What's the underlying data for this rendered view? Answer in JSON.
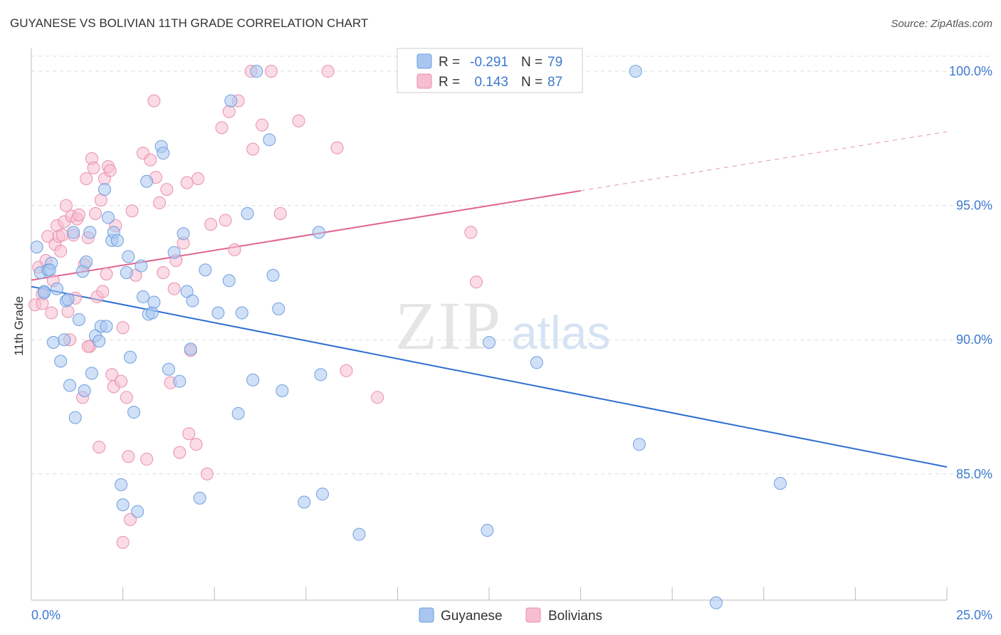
{
  "title": "GUYANESE VS BOLIVIAN 11TH GRADE CORRELATION CHART",
  "source": "Source: ZipAtlas.com",
  "watermark": {
    "zip": "ZIP",
    "atlas": "atlas"
  },
  "colors": {
    "guyanese_fill": "#a9c6f0",
    "guyanese_stroke": "#6f9fdf",
    "guyanese_line": "#2f6fcf",
    "bolivians_fill": "#f7bdd0",
    "bolivians_stroke": "#e890ad",
    "bolivians_line": "#e0648f",
    "grid": "#dddddd",
    "tick_text": "#3d7ad1"
  },
  "legend": {
    "rows": [
      {
        "r_label": "R =",
        "r_value": "-0.291",
        "n_label": "N =",
        "n_value": "79"
      },
      {
        "r_label": "R =",
        "r_value": "0.143",
        "n_label": "N =",
        "n_value": "87"
      }
    ]
  },
  "chart_data": {
    "type": "scatter",
    "title": "GUYANESE VS BOLIVIAN 11TH GRADE CORRELATION CHART",
    "xlabel": "",
    "ylabel": "11th Grade",
    "xlim": [
      0,
      25
    ],
    "ylim": [
      80.3,
      100.8
    ],
    "x_tick_labels": [
      "0.0%",
      "25.0%"
    ],
    "y_ticks": [
      85,
      90,
      95,
      100
    ],
    "y_tick_labels": [
      "85.0%",
      "90.0%",
      "95.0%",
      "100.0%"
    ],
    "grid": true,
    "legend_position": "top-center",
    "series": [
      {
        "name": "Guyanese",
        "r": -0.291,
        "n": 79,
        "trend": {
          "x0": 0,
          "y0": 91.98,
          "x1": 25,
          "y1": 85.26
        },
        "points": [
          [
            0.15,
            93.45
          ],
          [
            0.25,
            92.5
          ],
          [
            0.35,
            91.8
          ],
          [
            0.45,
            92.6
          ],
          [
            0.55,
            92.85
          ],
          [
            0.6,
            89.9
          ],
          [
            0.7,
            91.9
          ],
          [
            0.8,
            89.2
          ],
          [
            0.9,
            90.0
          ],
          [
            0.95,
            91.45
          ],
          [
            1.05,
            88.3
          ],
          [
            1.15,
            94.0
          ],
          [
            1.2,
            87.1
          ],
          [
            1.3,
            90.75
          ],
          [
            1.4,
            92.55
          ],
          [
            1.45,
            88.1
          ],
          [
            1.5,
            92.9
          ],
          [
            1.6,
            94.0
          ],
          [
            1.65,
            88.75
          ],
          [
            1.75,
            90.15
          ],
          [
            1.85,
            89.95
          ],
          [
            1.9,
            90.5
          ],
          [
            2.0,
            95.6
          ],
          [
            2.05,
            90.5
          ],
          [
            2.1,
            94.55
          ],
          [
            2.2,
            93.7
          ],
          [
            2.25,
            94.0
          ],
          [
            2.45,
            84.6
          ],
          [
            2.5,
            83.85
          ],
          [
            2.6,
            92.5
          ],
          [
            2.65,
            93.1
          ],
          [
            2.7,
            89.35
          ],
          [
            2.8,
            87.3
          ],
          [
            2.9,
            83.6
          ],
          [
            3.0,
            92.75
          ],
          [
            3.05,
            91.6
          ],
          [
            3.15,
            95.9
          ],
          [
            3.2,
            90.95
          ],
          [
            3.3,
            91.0
          ],
          [
            3.35,
            91.4
          ],
          [
            3.55,
            97.2
          ],
          [
            3.6,
            96.95
          ],
          [
            3.75,
            88.9
          ],
          [
            3.9,
            93.25
          ],
          [
            4.05,
            88.45
          ],
          [
            4.15,
            93.95
          ],
          [
            4.25,
            91.8
          ],
          [
            4.35,
            89.65
          ],
          [
            4.4,
            91.45
          ],
          [
            4.6,
            84.1
          ],
          [
            4.75,
            92.6
          ],
          [
            5.1,
            91.0
          ],
          [
            5.4,
            92.2
          ],
          [
            5.45,
            98.9
          ],
          [
            5.65,
            87.25
          ],
          [
            5.75,
            91.0
          ],
          [
            5.9,
            94.7
          ],
          [
            6.05,
            88.5
          ],
          [
            6.15,
            100.0
          ],
          [
            6.5,
            97.45
          ],
          [
            6.6,
            92.4
          ],
          [
            6.75,
            91.15
          ],
          [
            6.85,
            88.1
          ],
          [
            7.45,
            83.95
          ],
          [
            7.85,
            94.0
          ],
          [
            7.9,
            88.7
          ],
          [
            7.95,
            84.25
          ],
          [
            8.95,
            82.75
          ],
          [
            12.45,
            82.9
          ],
          [
            12.5,
            89.9
          ],
          [
            13.8,
            89.15
          ],
          [
            16.6,
            86.1
          ],
          [
            16.5,
            100.0
          ],
          [
            20.45,
            84.65
          ],
          [
            18.7,
            80.2
          ],
          [
            0.5,
            92.6
          ],
          [
            1.0,
            91.5
          ],
          [
            0.35,
            91.75
          ],
          [
            2.35,
            93.7
          ]
        ]
      },
      {
        "name": "Bolivians",
        "r": 0.143,
        "n": 87,
        "trend": {
          "x0": 0,
          "y0": 92.22,
          "x1": 15,
          "y1": 95.55,
          "dash_to_x": 25,
          "dash_to_y": 97.75
        },
        "points": [
          [
            0.1,
            91.3
          ],
          [
            0.2,
            92.7
          ],
          [
            0.3,
            91.7
          ],
          [
            0.4,
            92.95
          ],
          [
            0.45,
            93.85
          ],
          [
            0.55,
            91.0
          ],
          [
            0.6,
            92.2
          ],
          [
            0.65,
            93.55
          ],
          [
            0.7,
            94.25
          ],
          [
            0.75,
            93.85
          ],
          [
            0.8,
            93.3
          ],
          [
            0.85,
            93.9
          ],
          [
            0.9,
            94.4
          ],
          [
            0.95,
            95.0
          ],
          [
            1.0,
            91.05
          ],
          [
            1.05,
            90.0
          ],
          [
            1.1,
            94.6
          ],
          [
            1.15,
            93.9
          ],
          [
            1.2,
            91.55
          ],
          [
            1.25,
            94.5
          ],
          [
            1.3,
            94.65
          ],
          [
            1.4,
            87.85
          ],
          [
            1.45,
            92.8
          ],
          [
            1.5,
            96.0
          ],
          [
            1.55,
            93.8
          ],
          [
            1.6,
            89.75
          ],
          [
            1.65,
            96.75
          ],
          [
            1.7,
            96.4
          ],
          [
            1.75,
            94.7
          ],
          [
            1.8,
            91.6
          ],
          [
            1.9,
            95.2
          ],
          [
            1.95,
            91.8
          ],
          [
            2.0,
            96.0
          ],
          [
            2.05,
            92.45
          ],
          [
            2.1,
            96.45
          ],
          [
            2.15,
            96.3
          ],
          [
            2.2,
            88.7
          ],
          [
            2.25,
            88.25
          ],
          [
            2.3,
            94.25
          ],
          [
            2.45,
            88.45
          ],
          [
            2.5,
            90.45
          ],
          [
            2.6,
            87.85
          ],
          [
            2.65,
            85.65
          ],
          [
            2.75,
            94.8
          ],
          [
            2.85,
            92.4
          ],
          [
            3.05,
            96.95
          ],
          [
            3.15,
            85.55
          ],
          [
            3.25,
            96.7
          ],
          [
            3.35,
            98.9
          ],
          [
            3.4,
            96.05
          ],
          [
            3.5,
            95.1
          ],
          [
            3.6,
            92.5
          ],
          [
            3.7,
            95.6
          ],
          [
            3.8,
            88.4
          ],
          [
            3.9,
            91.9
          ],
          [
            3.95,
            92.95
          ],
          [
            4.05,
            85.8
          ],
          [
            4.15,
            93.6
          ],
          [
            4.25,
            95.85
          ],
          [
            4.3,
            86.5
          ],
          [
            4.35,
            89.6
          ],
          [
            4.5,
            86.1
          ],
          [
            4.55,
            96.0
          ],
          [
            4.8,
            85.0
          ],
          [
            4.9,
            94.3
          ],
          [
            5.2,
            97.9
          ],
          [
            5.3,
            94.45
          ],
          [
            5.4,
            98.5
          ],
          [
            5.55,
            93.35
          ],
          [
            5.65,
            98.9
          ],
          [
            6.0,
            100.0
          ],
          [
            6.05,
            97.1
          ],
          [
            6.3,
            98.0
          ],
          [
            6.55,
            100.0
          ],
          [
            6.8,
            94.7
          ],
          [
            7.3,
            98.15
          ],
          [
            8.1,
            100.0
          ],
          [
            8.35,
            97.15
          ],
          [
            8.6,
            88.85
          ],
          [
            9.45,
            87.85
          ],
          [
            12.0,
            94.0
          ],
          [
            12.15,
            92.15
          ],
          [
            2.5,
            82.45
          ],
          [
            2.7,
            83.3
          ],
          [
            0.3,
            91.35
          ],
          [
            1.55,
            89.75
          ],
          [
            1.85,
            86.0
          ]
        ]
      }
    ]
  },
  "bottom_legend": [
    {
      "label": "Guyanese"
    },
    {
      "label": "Bolivians"
    }
  ]
}
